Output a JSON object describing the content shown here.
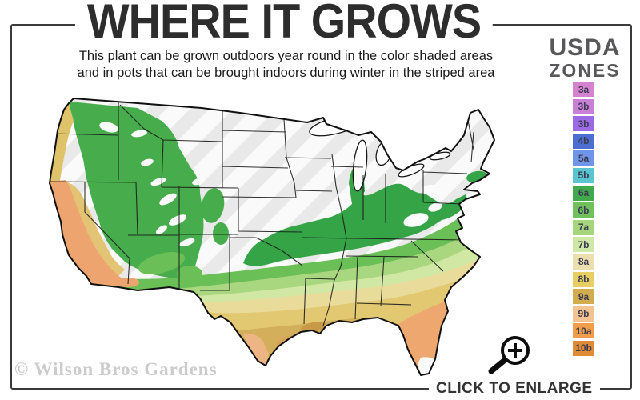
{
  "title": "WHERE IT GROWS",
  "subtitle_line1": "This plant can be grown outdoors year round in the color shaded areas",
  "subtitle_line2": "and in pots that can be brought indoors during winter in the striped area",
  "legend": {
    "heading_line1": "USDA",
    "heading_line2": "ZONES",
    "zones": [
      {
        "label": "3a",
        "color": "#d583cf"
      },
      {
        "label": "3b",
        "color": "#cb80d8"
      },
      {
        "label": "3b",
        "color": "#9c6ae5"
      },
      {
        "label": "4b",
        "color": "#4c6dd2"
      },
      {
        "label": "5a",
        "color": "#6f95e9"
      },
      {
        "label": "5b",
        "color": "#5ac4cf"
      },
      {
        "label": "6a",
        "color": "#42a84c"
      },
      {
        "label": "6b",
        "color": "#70c05b"
      },
      {
        "label": "7a",
        "color": "#a6d57e"
      },
      {
        "label": "7b",
        "color": "#cfe8a6"
      },
      {
        "label": "8a",
        "color": "#ecdfae"
      },
      {
        "label": "8b",
        "color": "#e7cf63"
      },
      {
        "label": "9a",
        "color": "#d2ad4f"
      },
      {
        "label": "9b",
        "color": "#f4c392"
      },
      {
        "label": "10a",
        "color": "#f09e49"
      },
      {
        "label": "10b",
        "color": "#e18b36"
      }
    ]
  },
  "map": {
    "kind": "usda-hardiness-zone-map-continental-us",
    "white_striped_area_color": "#fafafa",
    "stripe_color": "#e9e9e9",
    "zone_band_colors": [
      "#34a447",
      "#6bbf57",
      "#a9d77f",
      "#d0e8a4",
      "#e9dc9b",
      "#e2c870",
      "#d3af5b",
      "#eda46f"
    ]
  },
  "watermark": "© Wilson Bros Gardens",
  "enlarge": {
    "label": "CLICK TO ENLARGE",
    "icon": "magnifier-plus-icon"
  }
}
